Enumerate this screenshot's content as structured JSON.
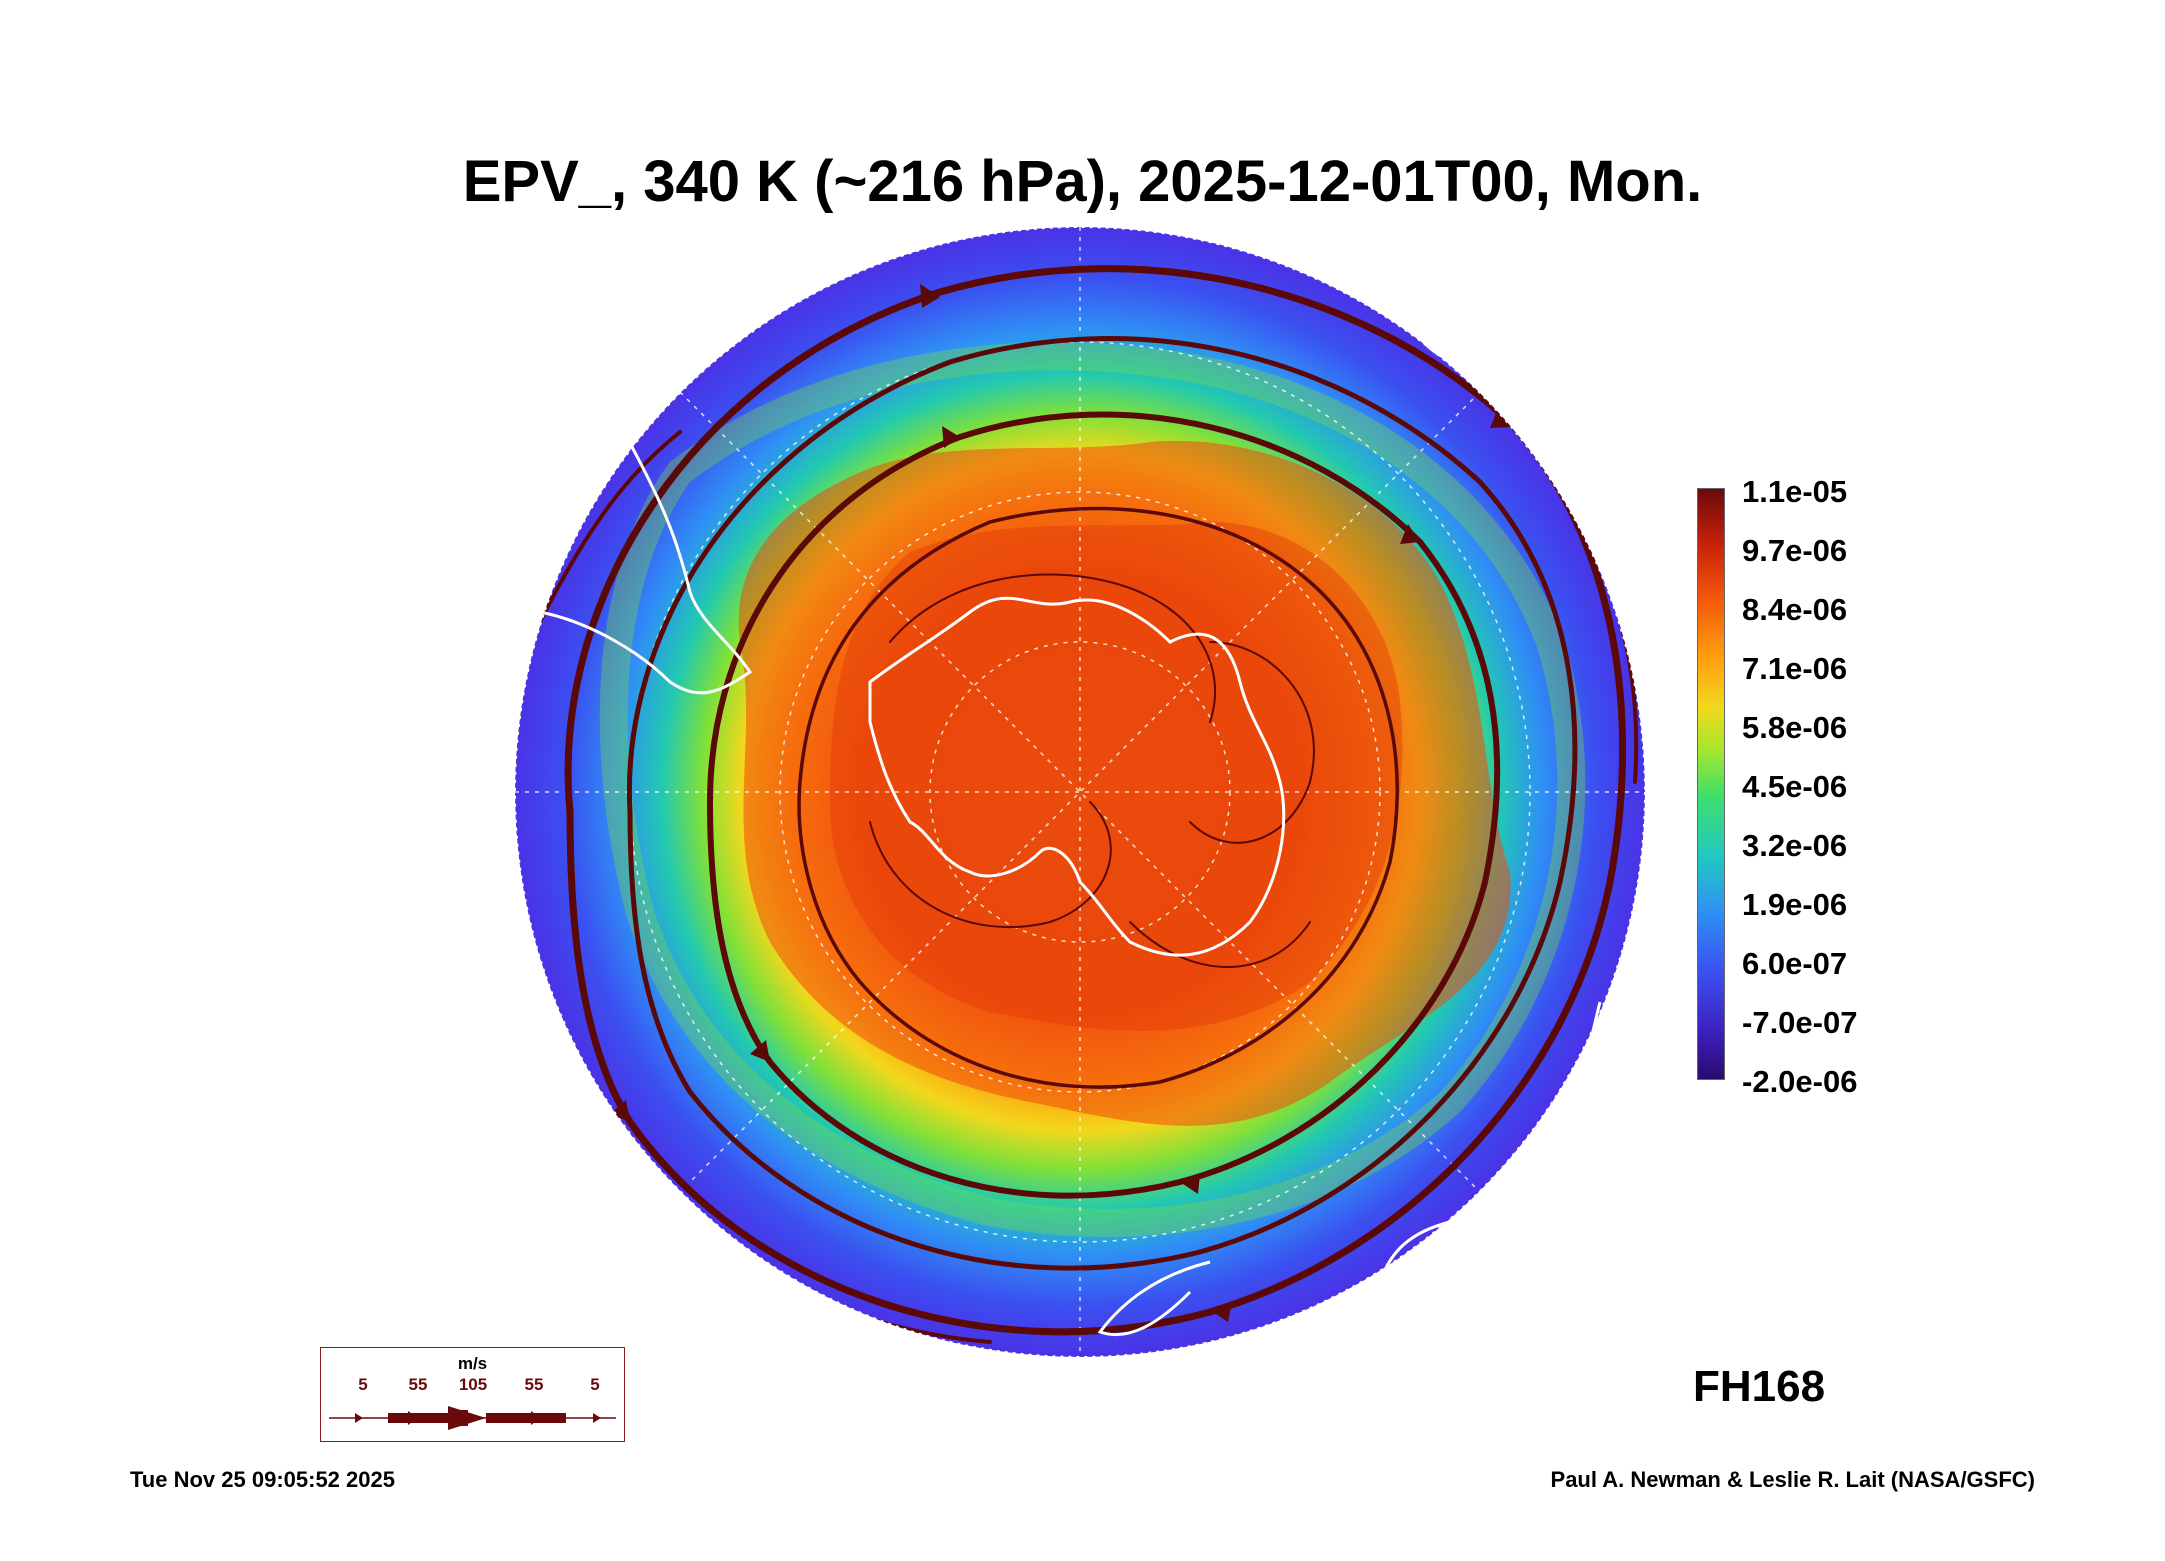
{
  "title": "EPV_, 340 K (~216 hPa), 2025-12-01T00, Mon.",
  "map": {
    "projection": "south-polar-stereographic",
    "feature_icons": [
      "antarctica-coastline-icon",
      "south-america-coastline-icon",
      "africa-coastline-icon",
      "australia-coastline-icon",
      "new-zealand-coastline-icon",
      "streamline-icon"
    ]
  },
  "colorbar": {
    "labels": [
      "1.1e-05",
      "9.7e-06",
      "8.4e-06",
      "7.1e-06",
      "5.8e-06",
      "4.5e-06",
      "3.2e-06",
      "1.9e-06",
      "6.0e-07",
      "-7.0e-07",
      "-2.0e-06"
    ],
    "colors": [
      "#6b0a0a",
      "#c4200a",
      "#f2530a",
      "#ff9a0f",
      "#f2d81c",
      "#a8e62c",
      "#3ee06a",
      "#22c9c0",
      "#2f8ff5",
      "#3b50f0",
      "#3d1fbf",
      "#2a0a6e"
    ]
  },
  "forecast_hour": "FH168",
  "wind_legend": {
    "unit": "m/s",
    "ticks": [
      "5",
      "55",
      "105",
      "55",
      "5"
    ],
    "color": "#6b0a0a"
  },
  "footer": {
    "timestamp": "Tue Nov 25 09:05:52 2025",
    "credit": "Paul A. Newman & Leslie R. Lait (NASA/GSFC)"
  }
}
